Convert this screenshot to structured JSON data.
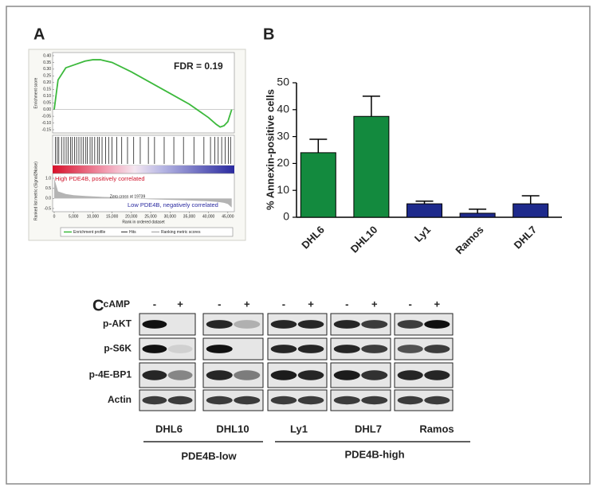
{
  "panel_labels": [
    "A",
    "B",
    "C"
  ],
  "chart_data": [
    {
      "type": "line",
      "ylabel": "Enrichment score",
      "y2label": "Ranked list metric (Signal2Noise)",
      "xlabel": "Rank in ordered dataset",
      "annotations": [
        "FDR = 0.19",
        "Zero cross at 19739",
        "High PDE4B, positively correlated",
        "Low PDE4B, negatively correlated"
      ],
      "x": [
        0,
        1000,
        3000,
        5000,
        8000,
        10000,
        12000,
        15000,
        20000,
        25000,
        30000,
        35000,
        40000,
        42000,
        43000,
        44000,
        45000,
        46000
      ],
      "series": [
        {
          "name": "Enrichment profile",
          "color": "#3cb93c",
          "values": [
            0,
            0.22,
            0.31,
            0.33,
            0.36,
            0.37,
            0.37,
            0.35,
            0.28,
            0.2,
            0.12,
            0.04,
            -0.06,
            -0.11,
            -0.13,
            -0.12,
            -0.09,
            0.0
          ]
        },
        {
          "name": "Ranking metric scores",
          "color": "#b4b4b4",
          "axis": "y2",
          "values": [
            1.0,
            0.35,
            0.22,
            0.16,
            0.12,
            0.1,
            0.08,
            0.06,
            0,
            -0.04,
            -0.07,
            -0.1,
            -0.14,
            -0.17,
            -0.19,
            -0.22,
            -0.28,
            -0.45
          ]
        }
      ],
      "hits": {
        "name": "Hits",
        "color": "#000000",
        "x": [
          300,
          800,
          1200,
          1900,
          2500,
          3100,
          3600,
          4200,
          4700,
          5300,
          5800,
          6400,
          7000,
          7500,
          8100,
          8600,
          9300,
          9800,
          10500,
          11200,
          11700,
          12400,
          13300,
          14100,
          15000,
          16200,
          17500,
          19000,
          20600,
          22300,
          24400,
          26000,
          28500,
          31000,
          33500,
          36200,
          38800,
          40500,
          41600,
          42500,
          43400,
          44300,
          45100,
          45700
        ]
      },
      "xlim": [
        0,
        46000
      ],
      "xticks": [
        0,
        {
          "value": 5000,
          "label": "5,000"
        },
        {
          "value": 10000,
          "label": "10,000"
        },
        {
          "value": 15000,
          "label": "15,000"
        },
        {
          "value": 20000,
          "label": "20,000"
        },
        {
          "value": 25000,
          "label": "25,000"
        },
        {
          "value": 30000,
          "label": "30,000"
        },
        {
          "value": 35000,
          "label": "35,000"
        },
        {
          "value": 40000,
          "label": "40,000"
        },
        {
          "value": 45000,
          "label": "45,000"
        }
      ],
      "ylim": [
        -0.17,
        0.42
      ],
      "yticks": [
        {
          "value": 0.4,
          "label": "0.40"
        },
        0.35,
        {
          "value": 0.3,
          "label": "0.30"
        },
        0.25,
        {
          "value": 0.2,
          "label": "0.20"
        },
        0.15,
        {
          "value": 0.1,
          "label": "0.10"
        },
        0.05,
        {
          "value": 0,
          "label": "0.00"
        },
        -0.05,
        {
          "value": -0.1,
          "label": "-0.10"
        },
        -0.15
      ],
      "y2lim": [
        -0.6,
        1.1
      ],
      "y2ticks": [
        {
          "value": 1,
          "label": "1.0"
        },
        {
          "value": 0.5,
          "label": "0.5"
        },
        {
          "value": 0,
          "label": "0.0"
        },
        {
          "value": -0.5,
          "label": "-0.5"
        }
      ]
    },
    {
      "type": "bar",
      "ylabel": "% Annexin-positive cells",
      "categories": [
        "DHL6",
        "DHL10",
        "Ly1",
        "Ramos",
        "DHL7"
      ],
      "values": [
        24,
        37.5,
        5,
        1.5,
        5
      ],
      "errors": [
        5,
        7.5,
        1,
        1.5,
        3
      ],
      "colors": [
        "#138a3e",
        "#138a3e",
        "#1e2a8c",
        "#1e2a8c",
        "#1e2a8c"
      ],
      "ylim": [
        0,
        50
      ],
      "yticks": [
        0,
        10,
        20,
        30,
        40,
        50
      ]
    }
  ],
  "blot": {
    "treatment_label": "cAMP",
    "lane_labels": [
      "-",
      "+",
      "-",
      "+",
      "-",
      "+",
      "-",
      "+",
      "-",
      "+"
    ],
    "rows": [
      "p-AKT",
      "p-S6K",
      "p-4E-BP1",
      "Actin"
    ],
    "cell_lines": [
      "DHL6",
      "DHL10",
      "Ly1",
      "DHL7",
      "Ramos"
    ],
    "groups": [
      "PDE4B-low",
      "PDE4B-high"
    ]
  }
}
